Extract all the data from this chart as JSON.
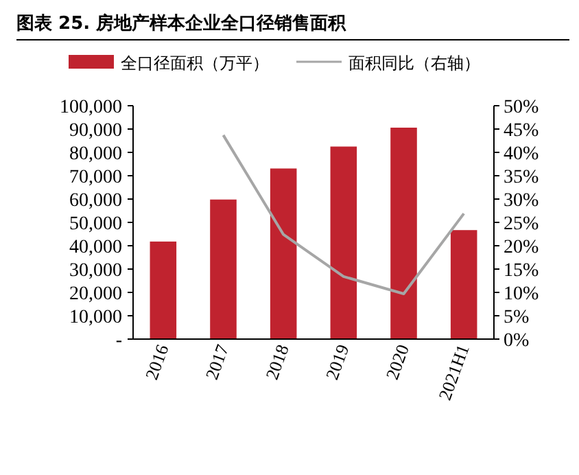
{
  "chart_data": {
    "type": "bar",
    "title": "图表 25. 房地产样本企业全口径销售面积",
    "categories": [
      "2016",
      "2017",
      "2018",
      "2019",
      "2020",
      "2021H1"
    ],
    "series": [
      {
        "name": "全口径面积（万平）",
        "color": "#c0232f",
        "values": [
          41800,
          59800,
          73100,
          82500,
          90600,
          46700
        ]
      },
      {
        "name": "面积同比（右轴）",
        "type": "line",
        "axis": "y2",
        "color": "#a6a6a6",
        "values": [
          null,
          43.7,
          22.4,
          13.4,
          9.7,
          26.9
        ]
      }
    ],
    "ylim": [
      0,
      100000
    ],
    "yticks": [
      {
        "value": 0,
        "label": "-"
      },
      {
        "value": 10000,
        "label": "10,000"
      },
      {
        "value": 20000,
        "label": "20,000"
      },
      {
        "value": 30000,
        "label": "30,000"
      },
      {
        "value": 40000,
        "label": "40,000"
      },
      {
        "value": 50000,
        "label": "50,000"
      },
      {
        "value": 60000,
        "label": "60,000"
      },
      {
        "value": 70000,
        "label": "70,000"
      },
      {
        "value": 80000,
        "label": "80,000"
      },
      {
        "value": 90000,
        "label": "90,000"
      },
      {
        "value": 100000,
        "label": "100,000"
      }
    ],
    "y2lim": [
      0,
      50
    ],
    "y2ticks": [
      {
        "value": 0,
        "label": "0%"
      },
      {
        "value": 5,
        "label": "5%"
      },
      {
        "value": 10,
        "label": "10%"
      },
      {
        "value": 15,
        "label": "15%"
      },
      {
        "value": 20,
        "label": "20%"
      },
      {
        "value": 25,
        "label": "25%"
      },
      {
        "value": 30,
        "label": "30%"
      },
      {
        "value": 35,
        "label": "35%"
      },
      {
        "value": 40,
        "label": "40%"
      },
      {
        "value": 45,
        "label": "45%"
      },
      {
        "value": 50,
        "label": "50%"
      }
    ],
    "legend": "top",
    "grid": false
  }
}
